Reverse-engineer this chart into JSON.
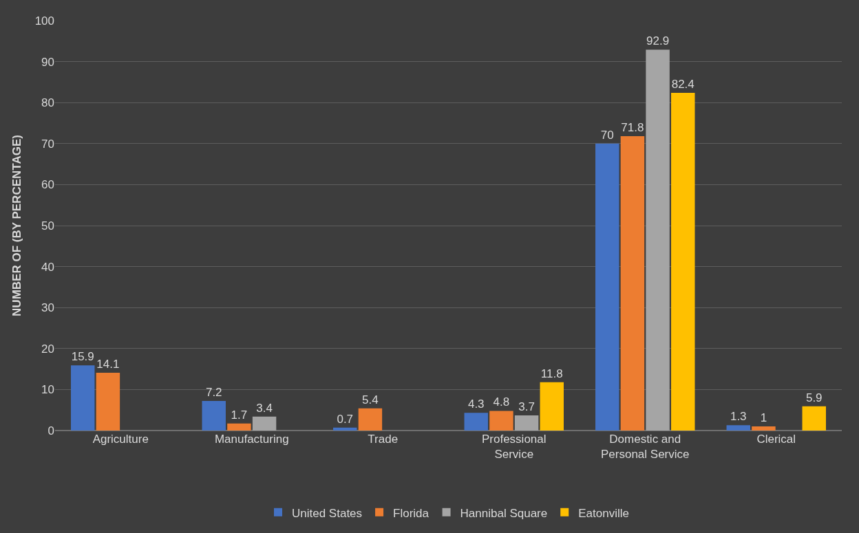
{
  "chart_data": {
    "type": "bar",
    "ylabel": "NUMBER OF (BY PERCENTAGE)",
    "categories": [
      "Agriculture",
      "Manufacturing",
      "Trade",
      "Professional Service",
      "Domestic and Personal Service",
      "Clerical"
    ],
    "series": [
      {
        "name": "United States",
        "color": "#4472c4",
        "values": [
          15.9,
          7.2,
          0.7,
          4.3,
          70,
          1.3
        ]
      },
      {
        "name": "Florida",
        "color": "#ed7d31",
        "values": [
          14.1,
          1.7,
          5.4,
          4.8,
          71.8,
          1
        ]
      },
      {
        "name": "Hannibal Square",
        "color": "#a5a5a5",
        "values": [
          null,
          3.4,
          null,
          3.7,
          92.9,
          null
        ]
      },
      {
        "name": "Eatonville",
        "color": "#ffc000",
        "values": [
          null,
          null,
          null,
          11.8,
          82.4,
          5.9
        ]
      }
    ],
    "ylim": [
      0,
      100
    ],
    "yticks": [
      0,
      10,
      20,
      30,
      40,
      50,
      60,
      70,
      80,
      90,
      100
    ],
    "grid": "y",
    "legend": "bottom",
    "data_labels": true
  }
}
